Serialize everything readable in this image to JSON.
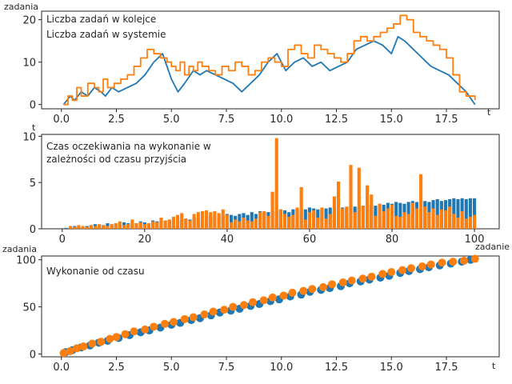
{
  "colors": {
    "blue": "#1f77b4",
    "orange": "#ff7f0e",
    "legend_blue": "#3a3ab8",
    "axis": "#262626"
  },
  "chart_data": [
    {
      "type": "line",
      "title": "",
      "xlabel": "t",
      "ylabel": "zadania",
      "xlim": [
        -0.9,
        19.9
      ],
      "ylim": [
        -1,
        22
      ],
      "xticks": [
        0.0,
        2.5,
        5.0,
        7.5,
        10.0,
        12.5,
        15.0,
        17.5
      ],
      "xtick_labels": [
        "0.0",
        "2.5",
        "5.0",
        "7.5",
        "10.0",
        "12.5",
        "15.0",
        "17.5"
      ],
      "yticks": [
        0,
        10,
        20
      ],
      "ytick_labels": [
        "0",
        "10",
        "20"
      ],
      "legend_placement": "top-left",
      "series": [
        {
          "name": "Liczba zadań w kolejce",
          "color": "#1f77b4",
          "step": false,
          "x": [
            0.1,
            0.4,
            0.6,
            0.9,
            1.2,
            1.5,
            1.8,
            2.0,
            2.3,
            2.6,
            3.0,
            3.4,
            3.8,
            4.2,
            4.6,
            5.0,
            5.3,
            5.6,
            6.0,
            6.3,
            6.6,
            7.0,
            7.4,
            7.8,
            8.2,
            8.6,
            9.0,
            9.4,
            9.8,
            10.2,
            10.6,
            11.0,
            11.4,
            11.8,
            12.2,
            12.6,
            13.0,
            13.4,
            13.8,
            14.2,
            14.6,
            15.0,
            15.3,
            15.6,
            16.0,
            16.4,
            16.8,
            17.2,
            17.6,
            18.0,
            18.4,
            18.8
          ],
          "y": [
            0,
            2,
            1,
            3,
            2,
            4,
            3,
            2,
            4,
            3,
            4,
            5,
            7,
            10,
            12,
            6,
            3,
            5,
            8,
            7,
            8,
            7,
            6,
            5,
            3,
            5,
            7,
            10,
            12,
            8,
            10,
            11,
            9,
            10,
            8,
            9,
            10,
            13,
            14,
            15,
            14,
            12,
            16,
            15,
            13,
            11,
            9,
            8,
            7,
            5,
            3,
            0
          ]
        },
        {
          "name": "Liczba zadań w systemie",
          "color": "#ff7f0e",
          "step": true,
          "x": [
            0.1,
            0.3,
            0.5,
            0.7,
            0.9,
            1.2,
            1.5,
            1.7,
            1.9,
            2.1,
            2.4,
            2.7,
            3.0,
            3.3,
            3.6,
            3.9,
            4.2,
            4.5,
            4.8,
            5.0,
            5.2,
            5.4,
            5.6,
            5.8,
            6.0,
            6.2,
            6.4,
            6.7,
            7.0,
            7.3,
            7.6,
            7.9,
            8.2,
            8.5,
            8.8,
            9.1,
            9.4,
            9.7,
            10.0,
            10.3,
            10.6,
            10.9,
            11.2,
            11.5,
            11.8,
            12.1,
            12.4,
            12.7,
            13.0,
            13.3,
            13.6,
            13.9,
            14.2,
            14.5,
            14.8,
            15.1,
            15.4,
            15.7,
            16.0,
            16.3,
            16.6,
            16.9,
            17.2,
            17.5,
            17.8,
            18.1,
            18.4,
            18.8
          ],
          "y": [
            0,
            2,
            1,
            4,
            2,
            5,
            4,
            3,
            6,
            4,
            5,
            6,
            7,
            9,
            11,
            13,
            12,
            11,
            10,
            9,
            8,
            10,
            7,
            9,
            8,
            10,
            9,
            8,
            7,
            9,
            8,
            10,
            9,
            7,
            8,
            10,
            11,
            10,
            9,
            13,
            14,
            12,
            11,
            14,
            13,
            12,
            11,
            10,
            12,
            15,
            16,
            15,
            16,
            17,
            18,
            19,
            21,
            20,
            17,
            16,
            15,
            14,
            13,
            11,
            7,
            3,
            2,
            1
          ]
        }
      ]
    },
    {
      "type": "bar",
      "title": "",
      "annotation": "Czas oczekiwania na wykonanie w\nzależności od czasu przyjścia",
      "xlabel": "zadanie",
      "ylabel": "t",
      "xlim": [
        -5,
        106
      ],
      "ylim": [
        0,
        10.2
      ],
      "xticks": [
        0,
        20,
        40,
        60,
        80,
        100
      ],
      "xtick_labels": [
        "0",
        "20",
        "40",
        "60",
        "80",
        "100"
      ],
      "yticks": [
        0,
        5,
        10
      ],
      "ytick_labels": [
        "0",
        "5",
        "10"
      ],
      "stacked_note": "orange bars drawn over blue bars",
      "series": [
        {
          "name": "",
          "color": "#1f77b4",
          "values": [
            0.1,
            0.2,
            0.3,
            0.2,
            0.1,
            0.3,
            0.4,
            0.5,
            0.3,
            0.4,
            0.6,
            0.5,
            0.4,
            0.5,
            0.7,
            0.6,
            0.5,
            0.6,
            0.8,
            0.7,
            0.6,
            0.9,
            0.8,
            0.7,
            0.9,
            1.0,
            0.8,
            0.9,
            1.0,
            1.1,
            1.0,
            1.2,
            1.1,
            0.9,
            1.3,
            1.4,
            1.5,
            1.4,
            1.3,
            1.6,
            1.5,
            1.4,
            1.6,
            1.7,
            1.5,
            1.8,
            1.6,
            1.9,
            1.7,
            1.8,
            2.0,
            1.9,
            2.1,
            2.0,
            1.8,
            2.1,
            2.2,
            2.0,
            2.1,
            2.3,
            2.2,
            2.1,
            2.0,
            2.2,
            2.3,
            2.1,
            2.4,
            2.3,
            2.2,
            2.5,
            2.4,
            2.3,
            2.5,
            2.4,
            2.6,
            2.5,
            2.7,
            2.6,
            2.8,
            2.7,
            2.9,
            2.8,
            2.7,
            2.9,
            3.0,
            2.9,
            3.1,
            3.0,
            2.9,
            3.1,
            3.2,
            3.0,
            3.1,
            3.2,
            3.3,
            3.2,
            3.3,
            3.2,
            3.3,
            3.3
          ],
          "x": [
            1,
            2,
            3,
            4,
            5,
            6,
            7,
            8,
            9,
            10,
            11,
            12,
            13,
            14,
            15,
            16,
            17,
            18,
            19,
            20,
            21,
            22,
            23,
            24,
            25,
            26,
            27,
            28,
            29,
            30,
            31,
            32,
            33,
            34,
            35,
            36,
            37,
            38,
            39,
            40,
            41,
            42,
            43,
            44,
            45,
            46,
            47,
            48,
            49,
            50,
            51,
            52,
            53,
            54,
            55,
            56,
            57,
            58,
            59,
            60,
            61,
            62,
            63,
            64,
            65,
            66,
            67,
            68,
            69,
            70,
            71,
            72,
            73,
            74,
            75,
            76,
            77,
            78,
            79,
            80,
            81,
            82,
            83,
            84,
            85,
            86,
            87,
            88,
            89,
            90,
            91,
            92,
            93,
            94,
            95,
            96,
            97,
            98,
            99,
            100
          ]
        },
        {
          "name": "",
          "color": "#ff7f0e",
          "values": [
            0.0,
            0.3,
            0.2,
            0.4,
            0.3,
            0.2,
            0.4,
            0.3,
            0.5,
            0.4,
            0.3,
            0.5,
            0.6,
            0.8,
            0.4,
            0.5,
            1.0,
            0.6,
            0.7,
            0.5,
            0.6,
            0.8,
            0.7,
            1.2,
            0.9,
            1.0,
            1.3,
            1.5,
            1.7,
            1.1,
            0.9,
            1.6,
            1.8,
            1.9,
            2.0,
            1.8,
            1.9,
            1.7,
            2.1,
            1.5,
            0.7,
            1.0,
            0.8,
            1.2,
            0.9,
            0.8,
            1.1,
            1.8,
            1.9,
            1.4,
            4.0,
            2.4,
            2.1,
            1.6,
            1.3,
            1.5,
            2.3,
            4.5,
            1.0,
            1.8,
            2.0,
            1.2,
            2.3,
            1.1,
            1.6,
            3.5,
            1.7,
            2.2,
            2.4,
            6.9,
            1.8,
            1.9,
            2.5,
            4.7,
            0.9,
            1.4,
            2.7,
            1.9,
            2.2,
            2.6,
            1.4,
            1.3,
            1.8,
            1.6,
            2.8,
            2.2,
            5.9,
            2.4,
            1.8,
            2.2,
            1.5,
            2.1,
            2.0,
            2.4,
            1.6,
            1.2,
            1.9,
            1.1,
            1.3,
            1.5
          ],
          "x": [
            1,
            2,
            3,
            4,
            5,
            6,
            7,
            8,
            9,
            10,
            11,
            12,
            13,
            14,
            15,
            16,
            17,
            18,
            19,
            20,
            21,
            22,
            23,
            24,
            25,
            26,
            27,
            28,
            29,
            30,
            31,
            32,
            33,
            34,
            35,
            36,
            37,
            38,
            39,
            40,
            41,
            42,
            43,
            44,
            45,
            46,
            47,
            48,
            49,
            50,
            51,
            52,
            53,
            54,
            55,
            56,
            57,
            58,
            59,
            60,
            61,
            62,
            63,
            64,
            65,
            66,
            67,
            68,
            69,
            70,
            71,
            72,
            73,
            74,
            75,
            76,
            77,
            78,
            79,
            80,
            81,
            82,
            83,
            84,
            85,
            86,
            87,
            88,
            89,
            90,
            91,
            92,
            93,
            94,
            95,
            96,
            97,
            98,
            99,
            100
          ]
        }
      ],
      "highlight_values": {
        "52": 9.8,
        "67": 5.1,
        "72": 6.6,
        "75": 3.7
      }
    },
    {
      "type": "scatter",
      "title": "",
      "annotation": "Wykonanie od czasu",
      "xlabel": "t",
      "ylabel": "zadania",
      "xlim": [
        -0.9,
        19.9
      ],
      "ylim": [
        -3,
        104
      ],
      "xticks": [
        0.0,
        2.5,
        5.0,
        7.5,
        10.0,
        12.5,
        15.0,
        17.5
      ],
      "xtick_labels": [
        "0.0",
        "2.5",
        "5.0",
        "7.5",
        "10.0",
        "12.5",
        "15.0",
        "17.5"
      ],
      "yticks": [
        0,
        50,
        100
      ],
      "ytick_labels": [
        "0",
        "50",
        "100"
      ],
      "series": [
        {
          "name": "",
          "color": "#1f77b4",
          "x": [
            0.2,
            0.5,
            0.9,
            1.3,
            1.7,
            2.1,
            2.6,
            3.1,
            3.6,
            4.0,
            4.5,
            5.0,
            5.4,
            5.9,
            6.3,
            6.8,
            7.2,
            7.7,
            8.1,
            8.6,
            9.0,
            9.5,
            9.9,
            10.4,
            10.9,
            11.3,
            11.8,
            12.2,
            12.7,
            13.1,
            13.6,
            14.0,
            14.5,
            14.9,
            15.4,
            15.8,
            16.3,
            16.7,
            17.2,
            17.7,
            18.2,
            18.6
          ],
          "y": [
            2,
            4,
            7,
            9,
            12,
            14,
            17,
            20,
            23,
            25,
            28,
            31,
            33,
            36,
            38,
            41,
            44,
            46,
            48,
            51,
            53,
            56,
            58,
            61,
            63,
            66,
            68,
            70,
            72,
            75,
            77,
            79,
            81,
            83,
            86,
            88,
            90,
            92,
            94,
            96,
            98,
            100
          ]
        },
        {
          "name": "",
          "color": "#ff7f0e",
          "x": [
            0.1,
            0.4,
            0.7,
            1.0,
            1.4,
            1.8,
            2.2,
            2.5,
            2.9,
            3.3,
            3.8,
            4.2,
            4.7,
            5.1,
            5.6,
            6.0,
            6.5,
            6.9,
            7.4,
            7.8,
            8.3,
            8.7,
            9.2,
            9.6,
            10.1,
            10.5,
            11.0,
            11.4,
            11.9,
            12.3,
            12.8,
            13.2,
            13.7,
            14.1,
            14.6,
            15.0,
            15.5,
            15.9,
            16.4,
            16.8,
            17.3,
            17.8,
            18.3,
            18.8
          ],
          "y": [
            1,
            3,
            6,
            8,
            11,
            13,
            16,
            18,
            21,
            24,
            26,
            29,
            32,
            34,
            37,
            39,
            42,
            45,
            47,
            50,
            52,
            55,
            57,
            60,
            62,
            65,
            67,
            69,
            71,
            74,
            76,
            78,
            80,
            82,
            85,
            87,
            89,
            91,
            93,
            95,
            97,
            98,
            99,
            101
          ]
        }
      ]
    }
  ],
  "legend": {
    "entries": [
      "Liczba zadań w kolejce",
      "Liczba zadań w systemie"
    ]
  }
}
